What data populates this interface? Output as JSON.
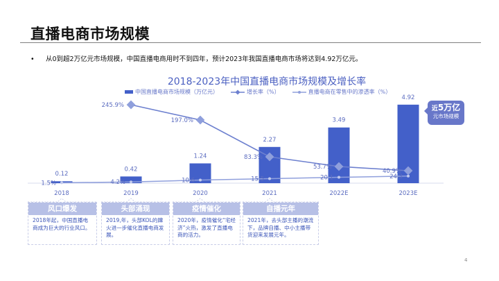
{
  "page": {
    "title": "直播电商市场规模",
    "bullet": "从0到超2万亿元市场规模，中国直播电商用时不到四年，预计2023年我国直播电商市场将达到4.92万亿元。",
    "bullet_marker": "•",
    "page_number": "4"
  },
  "callout": {
    "prefix": "近",
    "highlight": "5万亿",
    "line2": "元市场规模"
  },
  "cards": [
    {
      "title": "风口爆发",
      "text": "2018年起，中国直播电商成为巨大的行业风口。"
    },
    {
      "title": "头部涌现",
      "text": "2019,年，头部KOL的蹿火进一步催化直播电商发展。"
    },
    {
      "title": "疫情催化",
      "text": "2020年，疫情催化“宅经济”火热，激发了直播电商的活力。"
    },
    {
      "title": "自播元年",
      "text": "2021年，去头部主播的潮流下，品牌自播、中小主播带货迎来发展元年。"
    }
  ],
  "colors": {
    "bar": "#4360c9",
    "growth_line": "#6d80cf",
    "penetration_line": "#8f9fdc",
    "label": "#5b6cc0",
    "card_header": "#b7c0e6",
    "callout": "#6877c9"
  },
  "chart_data": {
    "type": "bar",
    "title": "2018-2023年中国直播电商市场规模及增长率",
    "categories": [
      "2018",
      "2019",
      "2020",
      "2021",
      "2022E",
      "2023E"
    ],
    "series": [
      {
        "name": "中国直播电商市场规模（万亿元）",
        "type": "bar",
        "values": [
          0.12,
          0.42,
          1.24,
          2.27,
          3.49,
          4.92
        ],
        "labels": [
          "0.12",
          "0.42",
          "1.24",
          "2.27",
          "3.49",
          "4.92"
        ]
      },
      {
        "name": "增长率（%）",
        "type": "line",
        "marker": "diamond",
        "values": [
          null,
          245.9,
          197.0,
          83.3,
          53.7,
          40.9
        ],
        "labels": [
          "",
          "245.9%",
          "197.0%",
          "83.3%",
          "53.7%",
          "40.9%"
        ]
      },
      {
        "name": "直播电商在零售中的渗透率（%）",
        "type": "line",
        "marker": "circle",
        "values": [
          1.5,
          4.2,
          10.6,
          15.5,
          20.1,
          24.3
        ],
        "labels": [
          "1.5%",
          "4.2%",
          "10.6",
          "15.5",
          "20.1",
          "24.3"
        ]
      }
    ],
    "xlabel": "",
    "ylabel": "",
    "grid": false,
    "legend_position": "top"
  }
}
